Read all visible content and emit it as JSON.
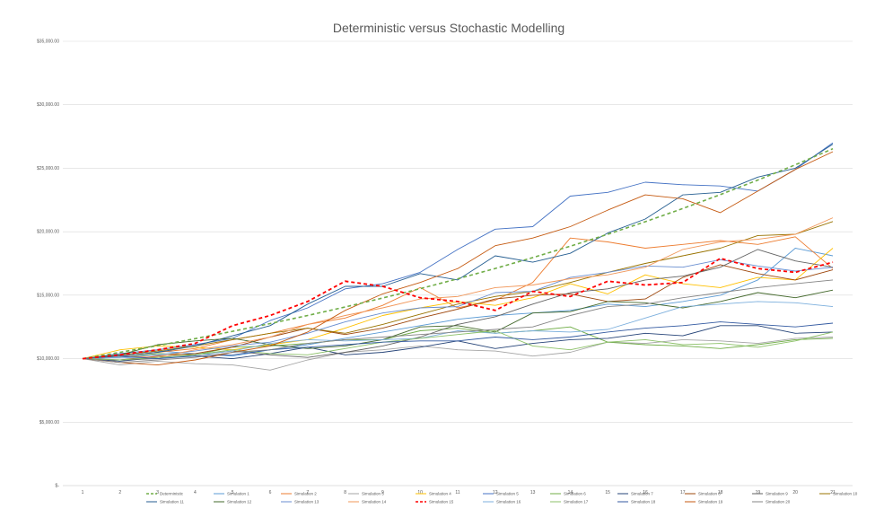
{
  "chart_data": {
    "type": "line",
    "title": "Deterministic versus Stochastic Modelling",
    "xlabel": "",
    "ylabel": "",
    "categories": [
      "1",
      "2",
      "3",
      "4",
      "5",
      "6",
      "7",
      "8",
      "9",
      "10",
      "11",
      "12",
      "13",
      "14",
      "15",
      "16",
      "17",
      "18",
      "19",
      "20",
      "21"
    ],
    "ylim": [
      0,
      35000
    ],
    "yticks": [
      0,
      5000,
      10000,
      15000,
      20000,
      25000,
      30000,
      35000
    ],
    "ytick_labels": [
      "$-",
      "$5,000.00",
      "$10,000.00",
      "$15,000.00",
      "$20,000.00",
      "$25,000.00",
      "$30,000.00",
      "$35,000.00"
    ],
    "grid": true,
    "legend": "bottom",
    "series": [
      {
        "name": "Deterministic",
        "color": "#70ad47",
        "dash": true,
        "width": 1.6,
        "values": [
          10000,
          10500,
          11025,
          11576,
          12155,
          12763,
          13401,
          14071,
          14775,
          15513,
          16289,
          17103,
          17959,
          18856,
          19799,
          20789,
          21829,
          22920,
          24066,
          25270,
          26533
        ]
      },
      {
        "name": "Simulation 1",
        "color": "#5b9bd5",
        "values": [
          10000,
          10300,
          10600,
          10400,
          10200,
          10700,
          11100,
          11600,
          12100,
          12600,
          13100,
          13400,
          13600,
          13800,
          14300,
          14100,
          14500,
          15000,
          16200,
          18700,
          18100
        ]
      },
      {
        "name": "Simulation 2",
        "color": "#ed7d31",
        "values": [
          10000,
          10200,
          10500,
          10800,
          11500,
          12000,
          12700,
          13200,
          14200,
          15600,
          14000,
          14600,
          16000,
          19500,
          19200,
          18700,
          19000,
          19300,
          19000,
          19600,
          17100
        ]
      },
      {
        "name": "Simulation 3",
        "color": "#a5a5a5",
        "values": [
          10000,
          9500,
          9800,
          9600,
          9500,
          9100,
          9900,
          10500,
          10700,
          11000,
          10700,
          10600,
          10200,
          10500,
          11300,
          11200,
          11500,
          11400,
          11200,
          11600,
          11700
        ]
      },
      {
        "name": "Simulation 4",
        "color": "#ffc000",
        "values": [
          10000,
          10700,
          11000,
          10900,
          10700,
          11100,
          11500,
          12400,
          13400,
          14000,
          14500,
          14200,
          14800,
          15900,
          15100,
          16600,
          15900,
          15600,
          16400,
          16200,
          18700
        ]
      },
      {
        "name": "Simulation 5",
        "color": "#4472c4",
        "values": [
          10000,
          10400,
          10700,
          11100,
          11600,
          13000,
          14000,
          15500,
          15900,
          16800,
          18600,
          20200,
          20400,
          22800,
          23100,
          23900,
          23700,
          23600,
          23200,
          24900,
          27000
        ]
      },
      {
        "name": "Simulation 6",
        "color": "#70ad47",
        "values": [
          10000,
          10100,
          10400,
          10300,
          10900,
          11000,
          11200,
          11500,
          11500,
          12200,
          12400,
          12000,
          12200,
          12500,
          11300,
          11100,
          11000,
          10800,
          11100,
          11500,
          11600
        ]
      },
      {
        "name": "Simulation 7",
        "color": "#264478",
        "values": [
          10000,
          9800,
          10100,
          10200,
          10000,
          10400,
          10900,
          10300,
          10500,
          10900,
          11400,
          10800,
          11200,
          11500,
          11600,
          12000,
          11800,
          12600,
          12600,
          12000,
          12100
        ]
      },
      {
        "name": "Simulation 8",
        "color": "#9e480e",
        "values": [
          10000,
          9900,
          10200,
          10400,
          10900,
          11700,
          12400,
          11900,
          12400,
          13200,
          13900,
          14700,
          15000,
          15100,
          14500,
          14700,
          16400,
          17400,
          16700,
          16200,
          17000
        ]
      },
      {
        "name": "Simulation 9",
        "color": "#636363",
        "values": [
          10000,
          9900,
          10000,
          10300,
          10600,
          10300,
          10100,
          10500,
          11000,
          11700,
          12700,
          13300,
          14300,
          15200,
          15500,
          16200,
          16500,
          17200,
          18600,
          17700,
          17200
        ]
      },
      {
        "name": "Simulation 10",
        "color": "#997300",
        "values": [
          10000,
          10300,
          10600,
          11000,
          11500,
          12000,
          12400,
          12000,
          12700,
          13500,
          14300,
          14900,
          15300,
          16000,
          16800,
          17500,
          18100,
          18700,
          19700,
          19800,
          20800
        ]
      },
      {
        "name": "Simulation 11",
        "color": "#255e91",
        "values": [
          10000,
          10200,
          10500,
          11000,
          11800,
          12600,
          14300,
          15700,
          15700,
          16700,
          16200,
          18100,
          17600,
          18300,
          19900,
          21000,
          22900,
          23100,
          24300,
          25000,
          26900
        ]
      },
      {
        "name": "Simulation 12",
        "color": "#43682b",
        "values": [
          10000,
          10300,
          11100,
          11400,
          11600,
          11100,
          10800,
          11000,
          11500,
          12500,
          12600,
          12100,
          13600,
          13700,
          14500,
          14400,
          14000,
          14500,
          15200,
          14800,
          15400
        ]
      },
      {
        "name": "Simulation 13",
        "color": "#698ed0",
        "values": [
          10000,
          10100,
          10300,
          10600,
          11000,
          11300,
          12000,
          12900,
          13600,
          14000,
          14100,
          15200,
          15300,
          16400,
          16800,
          17300,
          17200,
          17800,
          17300,
          16900,
          17200
        ]
      },
      {
        "name": "Simulation 14",
        "color": "#f1975a",
        "values": [
          10000,
          10200,
          10100,
          10700,
          11100,
          11700,
          12700,
          13400,
          14000,
          14700,
          14900,
          15600,
          15800,
          16300,
          16600,
          17200,
          18600,
          19200,
          19400,
          19800,
          21100
        ]
      },
      {
        "name": "Simulation 15",
        "color": "#ff0000",
        "dash": true,
        "width": 1.8,
        "values": [
          10000,
          10300,
          10700,
          11200,
          12600,
          13400,
          14500,
          16100,
          15700,
          14800,
          14500,
          13800,
          15300,
          14900,
          16100,
          15800,
          16000,
          17900,
          17100,
          16800,
          17600
        ]
      },
      {
        "name": "Simulation 16",
        "color": "#7cafdd",
        "values": [
          10000,
          10100,
          10000,
          10300,
          10600,
          11200,
          11500,
          11400,
          11500,
          11600,
          12200,
          12000,
          12200,
          12100,
          12300,
          13200,
          14100,
          14300,
          14500,
          14400,
          14100
        ]
      },
      {
        "name": "Simulation 17",
        "color": "#8cc168",
        "values": [
          10000,
          9900,
          10100,
          10300,
          10700,
          10400,
          10300,
          10800,
          11300,
          11600,
          11900,
          12200,
          11000,
          10700,
          11300,
          11500,
          11100,
          11200,
          10900,
          11400,
          12100
        ]
      },
      {
        "name": "Simulation 18",
        "color": "#335aa1",
        "values": [
          10000,
          10200,
          10000,
          10200,
          10300,
          10700,
          10900,
          11100,
          11300,
          11400,
          11400,
          11700,
          11500,
          11700,
          12100,
          12400,
          12600,
          12900,
          12700,
          12500,
          12800
        ]
      },
      {
        "name": "Simulation 19",
        "color": "#c55a11",
        "values": [
          10000,
          9700,
          9500,
          9900,
          10500,
          11000,
          12100,
          13800,
          15100,
          16000,
          17100,
          18900,
          19500,
          20400,
          21700,
          22900,
          22600,
          21500,
          23200,
          24900,
          26300
        ]
      },
      {
        "name": "Simulation 20",
        "color": "#848484",
        "values": [
          10000,
          9700,
          9900,
          10100,
          10500,
          10700,
          11200,
          11500,
          11700,
          11900,
          12100,
          12300,
          12500,
          13400,
          14100,
          14300,
          14800,
          15200,
          15600,
          15900,
          16200
        ]
      }
    ]
  }
}
